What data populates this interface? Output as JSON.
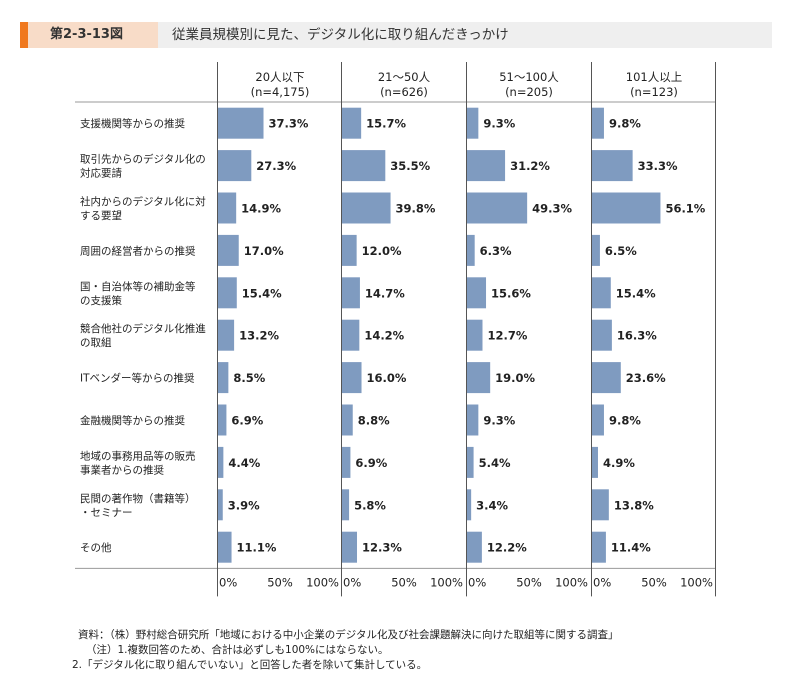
{
  "header": {
    "figure_number": "第2-3-13図",
    "title": "従業員規模別に見た、デジタル化に取り組んだきっかけ"
  },
  "chart_data": {
    "type": "bar",
    "orientation": "horizontal",
    "bar_color": "#7f9bc0",
    "xlim": [
      0,
      100
    ],
    "x_tick_labels": [
      "0%",
      "50%",
      "100%"
    ],
    "categories": [
      [
        "支援機関等からの推奨"
      ],
      [
        "取引先からのデジタル化の",
        "対応要請"
      ],
      [
        "社内からのデジタル化に対",
        "する要望"
      ],
      [
        "周囲の経営者からの推奨"
      ],
      [
        "国・自治体等の補助金等",
        "の支援策"
      ],
      [
        "競合他社のデジタル化推進",
        "の取組"
      ],
      [
        "ITベンダー等からの推奨"
      ],
      [
        "金融機関等からの推奨"
      ],
      [
        "地域の事務用品等の販売",
        "事業者からの推奨"
      ],
      [
        "民間の著作物（書籍等）",
        "・セミナー"
      ],
      [
        "その他"
      ]
    ],
    "series": [
      {
        "name": "20人以下",
        "n": "(n=4,175)",
        "values": [
          37.3,
          27.3,
          14.9,
          17.0,
          15.4,
          13.2,
          8.5,
          6.9,
          4.4,
          3.9,
          11.1
        ],
        "labels": [
          "37.3%",
          "27.3%",
          "14.9%",
          "17.0%",
          "15.4%",
          "13.2%",
          "8.5%",
          "6.9%",
          "4.4%",
          "3.9%",
          "11.1%"
        ]
      },
      {
        "name": "21～50人",
        "n": "(n=626)",
        "values": [
          15.7,
          35.5,
          39.8,
          12.0,
          14.7,
          14.2,
          16.0,
          8.8,
          6.9,
          5.8,
          12.3
        ],
        "labels": [
          "15.7%",
          "35.5%",
          "39.8%",
          "12.0%",
          "14.7%",
          "14.2%",
          "16.0%",
          "8.8%",
          "6.9%",
          "5.8%",
          "12.3%"
        ]
      },
      {
        "name": "51～100人",
        "n": "(n=205)",
        "values": [
          9.3,
          31.2,
          49.3,
          6.3,
          15.6,
          12.7,
          19.0,
          9.3,
          5.4,
          3.4,
          12.2
        ],
        "labels": [
          "9.3%",
          "31.2%",
          "49.3%",
          "6.3%",
          "15.6%",
          "12.7%",
          "19.0%",
          "9.3%",
          "5.4%",
          "3.4%",
          "12.2%"
        ]
      },
      {
        "name": "101人以上",
        "n": "(n=123)",
        "values": [
          9.8,
          33.3,
          56.1,
          6.5,
          15.4,
          16.3,
          23.6,
          9.8,
          4.9,
          13.8,
          11.4
        ],
        "labels": [
          "9.8%",
          "33.3%",
          "56.1%",
          "6.5%",
          "15.4%",
          "16.3%",
          "23.6%",
          "9.8%",
          "4.9%",
          "13.8%",
          "11.4%"
        ]
      }
    ]
  },
  "notes": [
    "資料：（株）野村総合研究所「地域における中小企業のデジタル化及び社会課題解決に向けた取組等に関する調査」",
    "（注）1.複数回答のため、合計は必ずしも100%にはならない。",
    "2.「デジタル化に取り組んでいない」と回答した者を除いて集計している。"
  ]
}
